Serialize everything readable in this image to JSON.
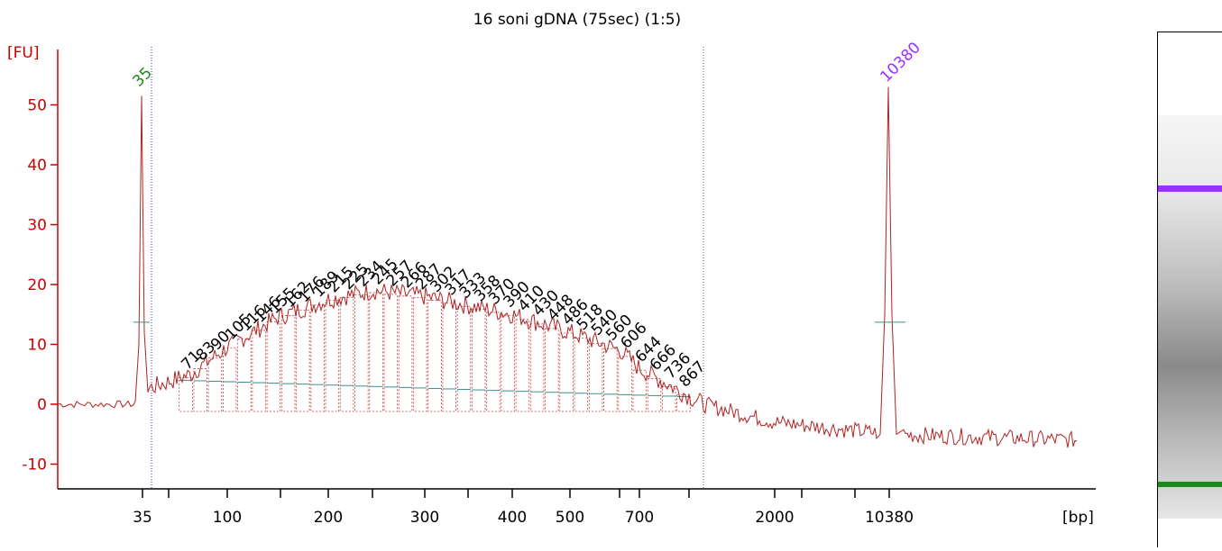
{
  "chart_data": {
    "type": "line",
    "title": "16 soni gDNA (75sec) (1:5)",
    "ylabel": "[FU]",
    "xlabel": "[bp]",
    "x_scale": "nonlinear (electropherogram size axis)",
    "ylim": [
      -14,
      60
    ],
    "y_ticks": [
      -10,
      0,
      10,
      20,
      30,
      40,
      50
    ],
    "x_tick_labels": [
      "35",
      "100",
      "200",
      "300",
      "400",
      "500",
      "700",
      "2000",
      "10380"
    ],
    "grid": false,
    "colors": {
      "trace": "#b22222",
      "axis": "#cc0000",
      "lower_marker": "#1a8a1a",
      "upper_marker": "#9b30ff",
      "region_bars": "#3a8f8f"
    },
    "marker_peaks": [
      {
        "label": "35",
        "role": "lower",
        "height_fu": 51.5
      },
      {
        "label": "10380",
        "role": "upper",
        "height_fu": 53
      }
    ],
    "smear_region": {
      "from_bp": 35,
      "to_bp": 1000
    },
    "peak_labels": [
      "71",
      "83",
      "90",
      "105",
      "116",
      "146",
      "155",
      "162",
      "176",
      "189",
      "215",
      "225",
      "234",
      "245",
      "257",
      "266",
      "287",
      "302",
      "317",
      "333",
      "358",
      "370",
      "390",
      "410",
      "430",
      "448",
      "486",
      "518",
      "540",
      "560",
      "606",
      "644",
      "666",
      "736",
      "867"
    ],
    "smear_profile": [
      {
        "bp": 35,
        "fu": 2.3
      },
      {
        "bp": 71,
        "fu": 5
      },
      {
        "bp": 100,
        "fu": 9.5
      },
      {
        "bp": 150,
        "fu": 14.5
      },
      {
        "bp": 200,
        "fu": 17.5
      },
      {
        "bp": 250,
        "fu": 19
      },
      {
        "bp": 300,
        "fu": 18
      },
      {
        "bp": 400,
        "fu": 15
      },
      {
        "bp": 500,
        "fu": 12
      },
      {
        "bp": 600,
        "fu": 9
      },
      {
        "bp": 700,
        "fu": 6
      },
      {
        "bp": 867,
        "fu": 1.5
      },
      {
        "bp": 1000,
        "fu": 0
      },
      {
        "bp": 2000,
        "fu": -3
      },
      {
        "bp": 10380,
        "fu": -5
      },
      {
        "bp": 15000,
        "fu": -6
      }
    ]
  }
}
